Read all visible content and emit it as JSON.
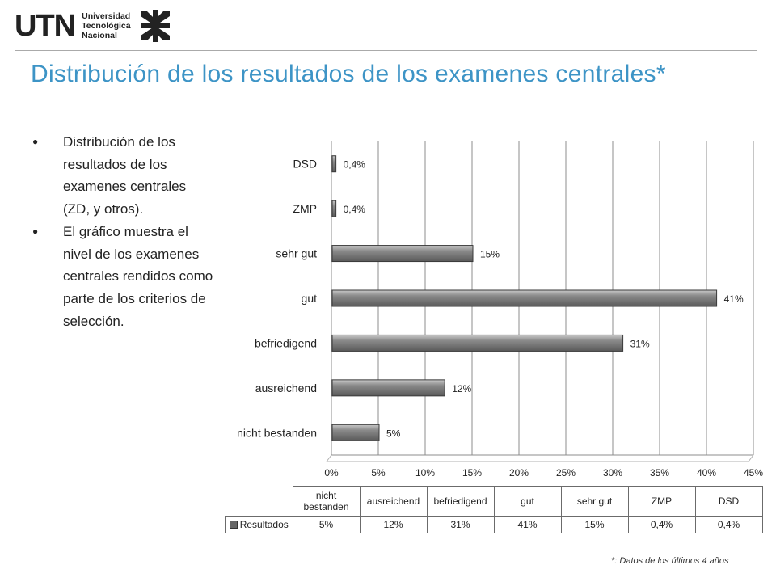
{
  "logo": {
    "word": "UTN",
    "lines": [
      "Universidad",
      "Tecnológica",
      "Nacional"
    ]
  },
  "title": "Distribución de los resultados de los examenes centrales*",
  "bullets": [
    "Distribución de los resultados de los examenes centrales (ZD, y otros).",
    "El gráfico muestra el nivel de los examenes centrales rendidos como parte de los criterios de selección."
  ],
  "colors": {
    "title": "#3d94c6",
    "bar": "#6b6b6b",
    "bar_edge": "#3a3a3a"
  },
  "chart_data": {
    "type": "bar",
    "orientation": "horizontal",
    "categories": [
      "DSD",
      "ZMP",
      "sehr gut",
      "gut",
      "befriedigend",
      "ausreichend",
      "nicht bestanden"
    ],
    "series": [
      {
        "name": "Resultados",
        "values": [
          0.4,
          0.4,
          15,
          41,
          31,
          12,
          5
        ]
      }
    ],
    "data_labels": [
      "0,4%",
      "0,4%",
      "15%",
      "41%",
      "31%",
      "12%",
      "5%"
    ],
    "xlim": [
      0,
      45
    ],
    "x_ticks": [
      "0%",
      "5%",
      "10%",
      "15%",
      "20%",
      "25%",
      "30%",
      "35%",
      "40%",
      "45%"
    ],
    "grid": true,
    "legend": "in data table"
  },
  "data_table": {
    "headers": [
      "nicht bestanden",
      "ausreichend",
      "befriedigend",
      "gut",
      "sehr gut",
      "ZMP",
      "DSD"
    ],
    "row_label": "Resultados",
    "values": [
      "5%",
      "12%",
      "31%",
      "41%",
      "15%",
      "0,4%",
      "0,4%"
    ]
  },
  "footnote": "*: Datos de los últimos 4 años"
}
